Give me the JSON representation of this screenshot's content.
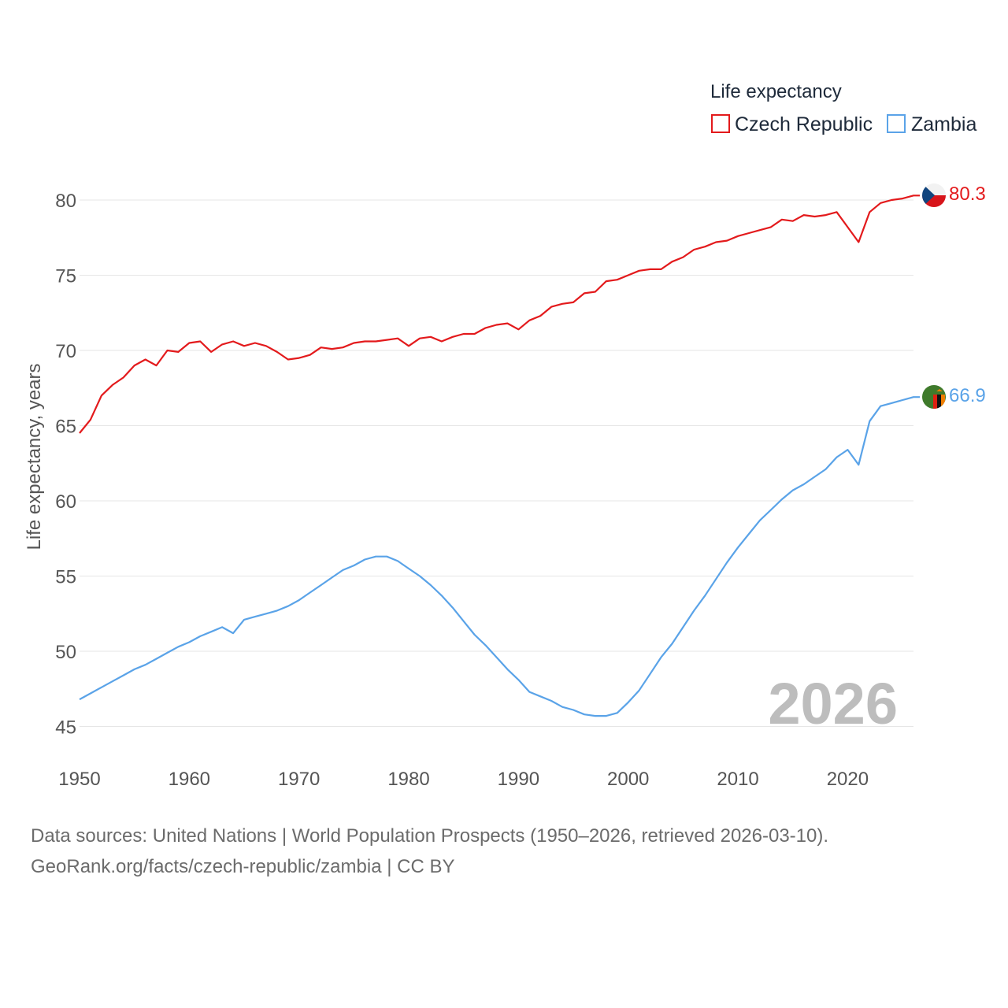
{
  "chart_data": {
    "type": "line",
    "legend_title": "Life expectancy",
    "ylabel": "Life expectancy, years",
    "xlabel": "",
    "xlim": [
      1950,
      2026
    ],
    "ylim": [
      44,
      82
    ],
    "y_ticks": [
      45,
      50,
      55,
      60,
      65,
      70,
      75,
      80
    ],
    "x_ticks": [
      1950,
      1960,
      1970,
      1980,
      1990,
      2000,
      2010,
      2020
    ],
    "current_year_label": "2026",
    "legend_position": "top-right",
    "series": [
      {
        "name": "Czech Republic",
        "color": "#e31a1c",
        "flag": "czech-flag-icon",
        "end_label": "80.3",
        "x": [
          1950,
          1951,
          1952,
          1953,
          1954,
          1955,
          1956,
          1957,
          1958,
          1959,
          1960,
          1961,
          1962,
          1963,
          1964,
          1965,
          1966,
          1967,
          1968,
          1969,
          1970,
          1971,
          1972,
          1973,
          1974,
          1975,
          1976,
          1977,
          1978,
          1979,
          1980,
          1981,
          1982,
          1983,
          1984,
          1985,
          1986,
          1987,
          1988,
          1989,
          1990,
          1991,
          1992,
          1993,
          1994,
          1995,
          1996,
          1997,
          1998,
          1999,
          2000,
          2001,
          2002,
          2003,
          2004,
          2005,
          2006,
          2007,
          2008,
          2009,
          2010,
          2011,
          2012,
          2013,
          2014,
          2015,
          2016,
          2017,
          2018,
          2019,
          2020,
          2021,
          2022,
          2023,
          2024,
          2025,
          2026
        ],
        "values": [
          64.5,
          65.4,
          67.0,
          67.7,
          68.2,
          69.0,
          69.4,
          69.0,
          70.0,
          69.9,
          70.5,
          70.6,
          69.9,
          70.4,
          70.6,
          70.3,
          70.5,
          70.3,
          69.9,
          69.4,
          69.5,
          69.7,
          70.2,
          70.1,
          70.2,
          70.5,
          70.6,
          70.6,
          70.7,
          70.8,
          70.3,
          70.8,
          70.9,
          70.6,
          70.9,
          71.1,
          71.1,
          71.5,
          71.7,
          71.8,
          71.4,
          72.0,
          72.3,
          72.9,
          73.1,
          73.2,
          73.8,
          73.9,
          74.6,
          74.7,
          75.0,
          75.3,
          75.4,
          75.4,
          75.9,
          76.2,
          76.7,
          76.9,
          77.2,
          77.3,
          77.6,
          77.8,
          78.0,
          78.2,
          78.7,
          78.6,
          79.0,
          78.9,
          79.0,
          79.2,
          78.2,
          77.2,
          79.2,
          79.8,
          80.0,
          80.1,
          80.3
        ]
      },
      {
        "name": "Zambia",
        "color": "#5aa3e8",
        "flag": "zambia-flag-icon",
        "end_label": "66.9",
        "x": [
          1950,
          1951,
          1952,
          1953,
          1954,
          1955,
          1956,
          1957,
          1958,
          1959,
          1960,
          1961,
          1962,
          1963,
          1964,
          1965,
          1966,
          1967,
          1968,
          1969,
          1970,
          1971,
          1972,
          1973,
          1974,
          1975,
          1976,
          1977,
          1978,
          1979,
          1980,
          1981,
          1982,
          1983,
          1984,
          1985,
          1986,
          1987,
          1988,
          1989,
          1990,
          1991,
          1992,
          1993,
          1994,
          1995,
          1996,
          1997,
          1998,
          1999,
          2000,
          2001,
          2002,
          2003,
          2004,
          2005,
          2006,
          2007,
          2008,
          2009,
          2010,
          2011,
          2012,
          2013,
          2014,
          2015,
          2016,
          2017,
          2018,
          2019,
          2020,
          2021,
          2022,
          2023,
          2024,
          2025,
          2026
        ],
        "values": [
          46.8,
          47.2,
          47.6,
          48.0,
          48.4,
          48.8,
          49.1,
          49.5,
          49.9,
          50.3,
          50.6,
          51.0,
          51.3,
          51.6,
          51.2,
          52.1,
          52.3,
          52.5,
          52.7,
          53.0,
          53.4,
          53.9,
          54.4,
          54.9,
          55.4,
          55.7,
          56.1,
          56.3,
          56.3,
          56.0,
          55.5,
          55.0,
          54.4,
          53.7,
          52.9,
          52.0,
          51.1,
          50.4,
          49.6,
          48.8,
          48.1,
          47.3,
          47.0,
          46.7,
          46.3,
          46.1,
          45.8,
          45.7,
          45.7,
          45.9,
          46.6,
          47.4,
          48.5,
          49.6,
          50.5,
          51.6,
          52.7,
          53.7,
          54.8,
          55.9,
          56.9,
          57.8,
          58.7,
          59.4,
          60.1,
          60.7,
          61.1,
          61.6,
          62.1,
          62.9,
          63.4,
          62.4,
          65.3,
          66.3,
          66.5,
          66.7,
          66.9
        ]
      }
    ]
  },
  "footer": {
    "source_line": "Data sources: United Nations | World Population Prospects (1950–2026, retrieved 2026-03-10).",
    "credit_line": "GeoRank.org/facts/czech-republic/zambia | CC BY"
  }
}
